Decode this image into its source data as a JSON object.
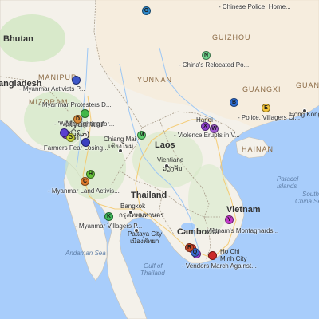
{
  "map": {
    "countries": [
      {
        "id": "bhutan",
        "label": "Bhutan"
      },
      {
        "id": "bangladesh",
        "label": "angladesh"
      },
      {
        "id": "myanmar",
        "label": "Myanmar"
      },
      {
        "id": "myanmar-script",
        "label": "(မြန်မာ)"
      },
      {
        "id": "laos",
        "label": "Laos"
      },
      {
        "id": "thailand",
        "label": "Thailand"
      },
      {
        "id": "cambodia",
        "label": "Cambodia"
      },
      {
        "id": "vietnam",
        "label": "Vietnam"
      }
    ],
    "regions": [
      {
        "id": "guizhou",
        "label": "GUIZHOU"
      },
      {
        "id": "yunnan",
        "label": "YUNNAN"
      },
      {
        "id": "guangxi",
        "label": "GUANGXI"
      },
      {
        "id": "guangdong",
        "label": "GUANG"
      },
      {
        "id": "hainan",
        "label": "HAINAN"
      },
      {
        "id": "manipur",
        "label": "MANIPUR"
      },
      {
        "id": "mizoram",
        "label": "MIZORAM"
      }
    ],
    "cities": [
      {
        "id": "hanoi",
        "label": "Hanoi"
      },
      {
        "id": "hong-kong",
        "label": "Hong Kong"
      },
      {
        "id": "chiang-mai",
        "label": "Chiang Mai"
      },
      {
        "id": "chiang-mai-thai",
        "label": "เชียงใหม่"
      },
      {
        "id": "vientiane",
        "label": "Vientiane"
      },
      {
        "id": "vientiane-local",
        "label": "ວຽງຈັນ"
      },
      {
        "id": "bangkok",
        "label": "Bangkok"
      },
      {
        "id": "bangkok-thai",
        "label": "กรุงเทพมหานคร"
      },
      {
        "id": "pattaya",
        "label": "Pattaya City"
      },
      {
        "id": "pattaya-thai",
        "label": "เมืองพัทยา"
      },
      {
        "id": "ho-chi-minh",
        "label": "Ho Chi"
      },
      {
        "id": "ho-chi-minh-2",
        "label": "Minh City"
      }
    ],
    "water": [
      {
        "id": "andaman-sea",
        "label": "Andaman Sea"
      },
      {
        "id": "gulf-thailand",
        "label": "Gulf of"
      },
      {
        "id": "gulf-thailand-2",
        "label": "Thailand"
      },
      {
        "id": "paracel",
        "label": "Paracel"
      },
      {
        "id": "paracel-2",
        "label": "Islands"
      },
      {
        "id": "south-china-sea",
        "label": "South"
      },
      {
        "id": "south-china-sea-2",
        "label": "China Sea"
      }
    ],
    "events": [
      {
        "id": "chinese-police",
        "label": "- Chinese Police, Home..."
      },
      {
        "id": "china-relocated",
        "label": "- China's Relocated Po..."
      },
      {
        "id": "police-villagers",
        "label": "- Police, Villagers Cl..."
      },
      {
        "id": "myanmar-activists",
        "label": "- Myanmar Activists P..."
      },
      {
        "id": "myanmar-protesters",
        "label": "- Myanmar Protesters D..."
      },
      {
        "id": "were-fighting",
        "label": "- 'We're Fighting for..."
      },
      {
        "id": "farmers-fear",
        "label": "- Farmers Fear Losing..."
      },
      {
        "id": "violence-erupts",
        "label": "- Violence Erupts in V..."
      },
      {
        "id": "myanmar-land",
        "label": "- Myanmar Land Activis..."
      },
      {
        "id": "myanmar-villagers",
        "label": "- Myanmar Villagers P..."
      },
      {
        "id": "montagnards",
        "label": "- Vietnam's Montagnards..."
      },
      {
        "id": "vendors-march",
        "label": "- Vendors March Against..."
      }
    ],
    "markers": [
      {
        "id": "A",
        "letter": "",
        "color": "#3d57c9"
      },
      {
        "id": "B",
        "letter": "B",
        "color": "#2f6fd6"
      },
      {
        "id": "C",
        "letter": "C",
        "color": "#e07b2e"
      },
      {
        "id": "D",
        "letter": "D",
        "color": "#d98c3a"
      },
      {
        "id": "E",
        "letter": "E",
        "color": "#f2c43b"
      },
      {
        "id": "F",
        "letter": "F",
        "color": "#7a3fb8"
      },
      {
        "id": "G",
        "letter": "G",
        "color": "#c9d53b"
      },
      {
        "id": "H",
        "letter": "H",
        "color": "#66c23b"
      },
      {
        "id": "I",
        "letter": "I",
        "color": "#42b84a"
      },
      {
        "id": "J",
        "letter": "",
        "color": "#3a3fc0"
      },
      {
        "id": "K",
        "letter": "K",
        "color": "#3fb85a"
      },
      {
        "id": "L",
        "letter": "L",
        "color": "#d8372b"
      },
      {
        "id": "M",
        "letter": "M",
        "color": "#5fcf6f"
      },
      {
        "id": "N",
        "letter": "N",
        "color": "#6fd38c"
      },
      {
        "id": "O",
        "letter": "O",
        "color": "#2f88c9"
      },
      {
        "id": "P",
        "letter": "P",
        "color": "#9a3fd0"
      },
      {
        "id": "Q",
        "letter": "Q",
        "color": "#3d6ed6"
      },
      {
        "id": "R",
        "letter": "R",
        "color": "#c94a2a"
      },
      {
        "id": "S",
        "letter": "",
        "color": "#cc2b2b"
      },
      {
        "id": "X",
        "letter": "X",
        "color": "#8e3fd0"
      },
      {
        "id": "Y",
        "letter": "Y",
        "color": "#c23ac9"
      },
      {
        "id": "W",
        "letter": "W",
        "color": "#a05ad0"
      },
      {
        "id": "FU",
        "letter": "",
        "color": "#5a3fd0"
      }
    ]
  }
}
